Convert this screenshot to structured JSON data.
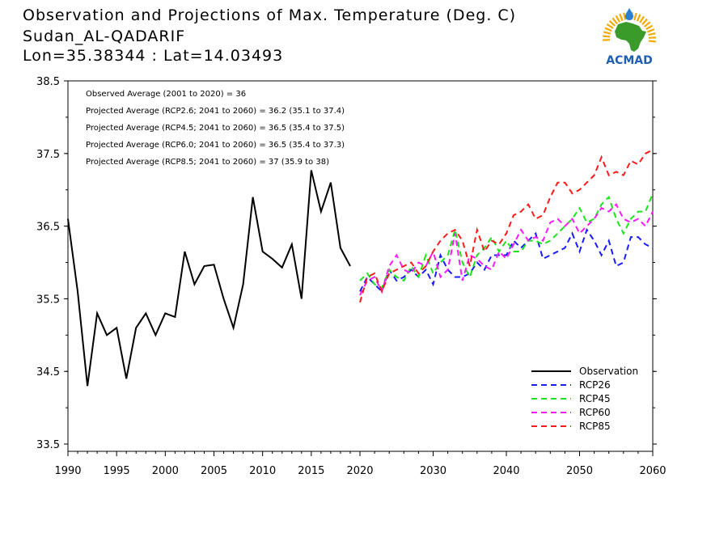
{
  "header": {
    "title_line1": "Observation and Projections of Max. Temperature (Deg. C)",
    "title_line2": "Sudan_AL-QADARIF",
    "title_line3": "Lon=35.38344 : Lat=14.03493"
  },
  "logo": {
    "text": "ACMAD",
    "colors": {
      "africa": "#3a9a2a",
      "sun": "#f2a900",
      "text": "#1f5fb0",
      "drop": "#2a7fd0"
    }
  },
  "annotations": [
    "Observed Average (2001 to 2020) = 36",
    "Projected Average (RCP2.6; 2041 to 2060) = 36.2 (35.1 to 37.4)",
    "Projected Average (RCP4.5; 2041 to 2060) = 36.5 (35.4 to 37.5)",
    "Projected Average (RCP6.0; 2041 to 2060) = 36.5 (35.4 to 37.3)",
    "Projected Average (RCP8.5; 2041 to 2060) = 37 (35.9 to 38)"
  ],
  "chart_data": {
    "type": "line",
    "ylim": [
      33.4,
      38.5
    ],
    "yticks": [
      33.5,
      34.5,
      35.5,
      36.5,
      37.5
    ],
    "ytick_labels": [
      "33.5",
      "34.5",
      "35.5",
      "36.5",
      "37.5",
      "38.5"
    ],
    "ytick_label_values": [
      33.5,
      34.5,
      35.5,
      36.5,
      37.5,
      38.5
    ],
    "x_segments": [
      {
        "from": 1990,
        "to": 2020,
        "step": 5,
        "labels": [
          "1990",
          "1995",
          "2000",
          "2005",
          "2010",
          "2015",
          "2020"
        ]
      },
      {
        "from": 2020,
        "to": 2060,
        "step": 10,
        "labels": [
          "2030",
          "2040",
          "2050",
          "2060"
        ]
      }
    ],
    "legend_position": "bottom-right",
    "series": [
      {
        "name": "Observation",
        "color": "#000000",
        "dash": "solid",
        "x": [
          1990,
          1991,
          1992,
          1993,
          1994,
          1995,
          1996,
          1997,
          1998,
          1999,
          2000,
          2001,
          2002,
          2003,
          2004,
          2005,
          2006,
          2007,
          2008,
          2009,
          2010,
          2011,
          2012,
          2013,
          2014,
          2015,
          2016,
          2017,
          2018,
          2019
        ],
        "values": [
          36.6,
          35.6,
          34.3,
          35.3,
          35.0,
          35.1,
          34.4,
          35.1,
          35.3,
          35.0,
          35.3,
          35.25,
          36.15,
          35.7,
          35.95,
          35.97,
          35.5,
          35.1,
          35.7,
          36.9,
          36.15,
          36.05,
          35.93,
          36.25,
          35.5,
          37.27,
          36.7,
          37.1,
          36.2,
          35.95
        ]
      },
      {
        "name": "RCP26",
        "color": "#1a1aff",
        "dash": "dashed",
        "x": [
          2020,
          2021,
          2022,
          2023,
          2024,
          2025,
          2026,
          2027,
          2028,
          2029,
          2030,
          2031,
          2032,
          2033,
          2034,
          2035,
          2036,
          2037,
          2038,
          2039,
          2040,
          2041,
          2042,
          2043,
          2044,
          2045,
          2046,
          2047,
          2048,
          2049,
          2050,
          2051,
          2052,
          2053,
          2054,
          2055,
          2056,
          2057,
          2058,
          2059,
          2060
        ],
        "values": [
          35.6,
          35.8,
          35.7,
          35.6,
          35.9,
          35.75,
          35.8,
          35.9,
          35.8,
          35.9,
          35.7,
          36.1,
          35.9,
          35.8,
          35.8,
          35.85,
          36.0,
          35.9,
          36.1,
          36.1,
          36.1,
          36.3,
          36.2,
          36.3,
          36.4,
          36.05,
          36.1,
          36.15,
          36.2,
          36.4,
          36.15,
          36.45,
          36.3,
          36.1,
          36.3,
          35.95,
          36.0,
          36.35,
          36.35,
          36.25,
          36.2
        ]
      },
      {
        "name": "RCP45",
        "color": "#19e619",
        "dash": "dashed",
        "x": [
          2020,
          2021,
          2022,
          2023,
          2024,
          2025,
          2026,
          2027,
          2028,
          2029,
          2030,
          2031,
          2032,
          2033,
          2034,
          2035,
          2036,
          2037,
          2038,
          2039,
          2040,
          2041,
          2042,
          2043,
          2044,
          2045,
          2046,
          2047,
          2048,
          2049,
          2050,
          2051,
          2052,
          2053,
          2054,
          2055,
          2056,
          2057,
          2058,
          2059,
          2060
        ],
        "values": [
          35.75,
          35.85,
          35.7,
          35.65,
          35.9,
          35.8,
          35.75,
          35.95,
          35.8,
          36.1,
          35.85,
          36.0,
          36.1,
          36.45,
          36.0,
          35.8,
          36.1,
          36.2,
          36.35,
          36.15,
          36.3,
          36.15,
          36.15,
          36.3,
          36.3,
          36.25,
          36.3,
          36.4,
          36.5,
          36.6,
          36.75,
          36.55,
          36.6,
          36.8,
          36.9,
          36.6,
          36.4,
          36.6,
          36.7,
          36.7,
          36.95
        ]
      },
      {
        "name": "RCP60",
        "color": "#ff19ff",
        "dash": "dashed",
        "x": [
          2020,
          2021,
          2022,
          2023,
          2024,
          2025,
          2026,
          2027,
          2028,
          2029,
          2030,
          2031,
          2032,
          2033,
          2034,
          2035,
          2036,
          2037,
          2038,
          2039,
          2040,
          2041,
          2042,
          2043,
          2044,
          2045,
          2046,
          2047,
          2048,
          2049,
          2050,
          2051,
          2052,
          2053,
          2054,
          2055,
          2056,
          2057,
          2058,
          2059,
          2060
        ],
        "values": [
          35.55,
          35.75,
          35.8,
          35.6,
          35.95,
          36.1,
          35.9,
          35.85,
          36.0,
          35.95,
          36.15,
          35.8,
          35.9,
          36.4,
          35.75,
          36.1,
          36.05,
          35.95,
          35.9,
          36.15,
          36.05,
          36.25,
          36.45,
          36.3,
          36.35,
          36.3,
          36.55,
          36.6,
          36.5,
          36.6,
          36.4,
          36.5,
          36.6,
          36.75,
          36.7,
          36.8,
          36.6,
          36.55,
          36.6,
          36.5,
          36.7
        ]
      },
      {
        "name": "RCP85",
        "color": "#ff1a1a",
        "dash": "dashed",
        "x": [
          2020,
          2021,
          2022,
          2023,
          2024,
          2025,
          2026,
          2027,
          2028,
          2029,
          2030,
          2031,
          2032,
          2033,
          2034,
          2035,
          2036,
          2037,
          2038,
          2039,
          2040,
          2041,
          2042,
          2043,
          2044,
          2045,
          2046,
          2047,
          2048,
          2049,
          2050,
          2051,
          2052,
          2053,
          2054,
          2055,
          2056,
          2057,
          2058,
          2059,
          2060
        ],
        "values": [
          35.45,
          35.8,
          35.85,
          35.6,
          35.85,
          35.9,
          35.95,
          36.0,
          35.85,
          35.95,
          36.15,
          36.3,
          36.4,
          36.45,
          36.3,
          35.95,
          36.45,
          36.15,
          36.3,
          36.25,
          36.4,
          36.65,
          36.7,
          36.8,
          36.6,
          36.65,
          36.9,
          37.1,
          37.1,
          36.95,
          37.0,
          37.1,
          37.2,
          37.45,
          37.2,
          37.25,
          37.2,
          37.4,
          37.35,
          37.5,
          37.55
        ]
      }
    ]
  }
}
